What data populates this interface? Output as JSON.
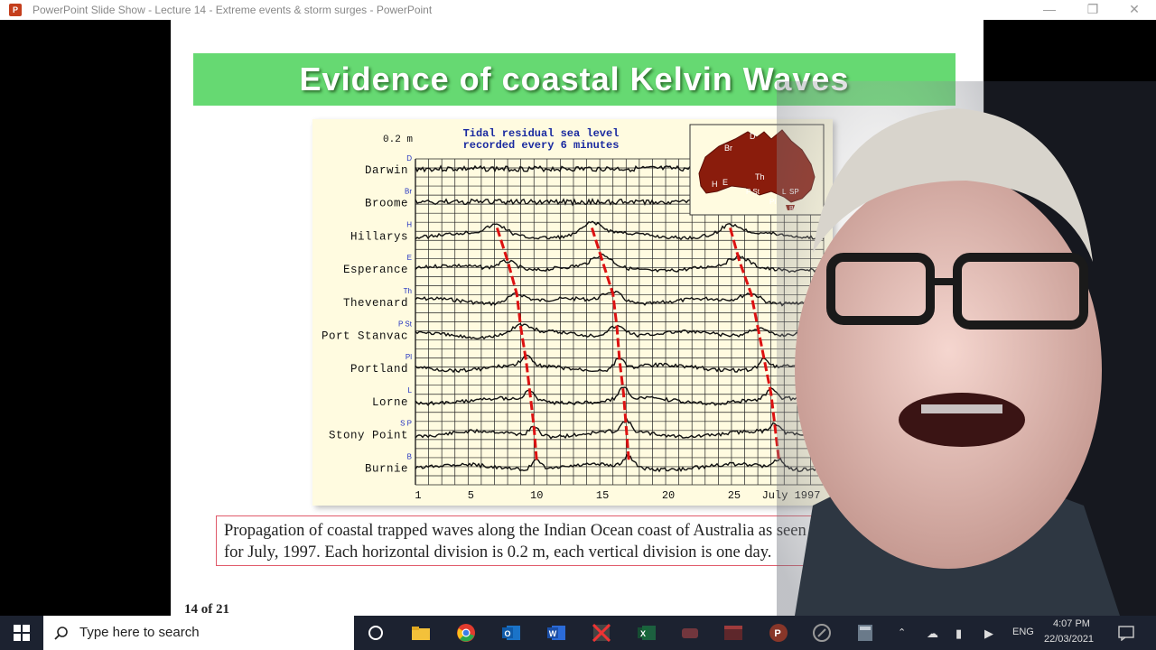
{
  "window": {
    "title": "PowerPoint Slide Show  -  Lecture 14 - Extreme events & storm surges - PowerPoint",
    "app_icon": "P",
    "controls": [
      "minimize-icon",
      "restore-icon",
      "close-icon"
    ]
  },
  "slide": {
    "title": "Evidence of coastal Kelvin Waves",
    "page_number": "14 of 21",
    "banner_color": "#66d972"
  },
  "figure": {
    "scale_label": "0.2 m",
    "heading_line1": "Tidal residual sea level",
    "heading_line2": "recorded every 6 minutes",
    "stations": [
      {
        "code": "D",
        "name": "Darwin"
      },
      {
        "code": "Br",
        "name": "Broome"
      },
      {
        "code": "H",
        "name": "Hillarys"
      },
      {
        "code": "E",
        "name": "Esperance"
      },
      {
        "code": "Th",
        "name": "Thevenard"
      },
      {
        "code": "P St",
        "name": "Port Stanvac"
      },
      {
        "code": "Pl",
        "name": "Portland"
      },
      {
        "code": "L",
        "name": "Lorne"
      },
      {
        "code": "S P",
        "name": "Stony Point"
      },
      {
        "code": "B",
        "name": "Burnie"
      }
    ],
    "x_ticks": [
      "1",
      "5",
      "10",
      "15",
      "20",
      "25",
      "July 1997"
    ],
    "map_labels": [
      "D",
      "Br",
      "Th",
      "H",
      "E",
      "P St",
      "L",
      "SP",
      "Pl",
      "B"
    ],
    "propagation_line_color": "#dd1111"
  },
  "caption": "Propagation of coastal trapped waves along the Indian Ocean coast of Australia as seen in sea level records for July, 1997. Each horizontal division is 0.2 m, each vertical division is one day.",
  "taskbar": {
    "search_placeholder": "Type here to search",
    "language": "ENG",
    "time": "4:07 PM",
    "date": "22/03/2021",
    "apps": [
      "task-view-icon",
      "file-explorer-icon",
      "chrome-icon",
      "outlook-icon",
      "word-icon",
      "app-icon",
      "excel-icon",
      "app-icon",
      "app-icon",
      "powerpoint-icon",
      "app-icon",
      "calculator-icon"
    ]
  }
}
